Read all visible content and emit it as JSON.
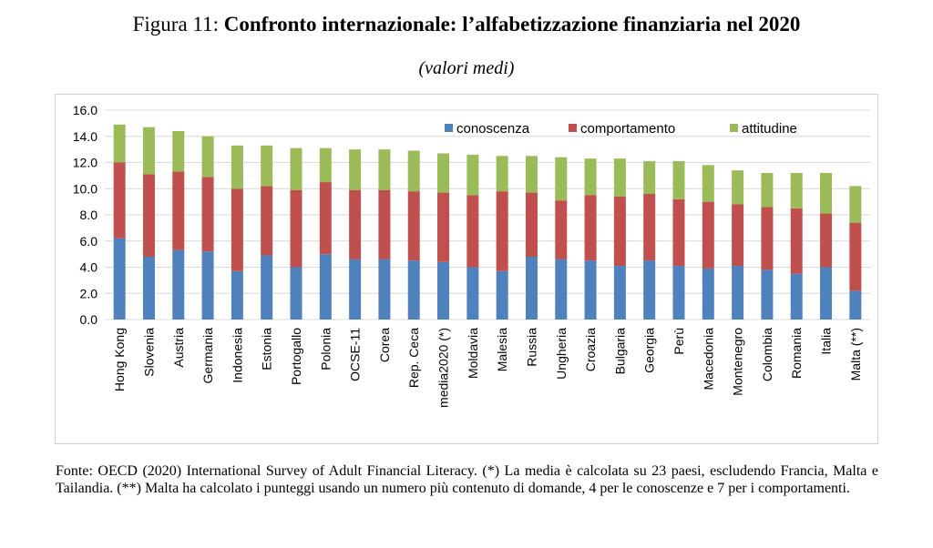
{
  "title": {
    "prefix": "Figura 11: ",
    "main": "Confronto internazionale: l’alfabetizzazione finanziaria nel 2020"
  },
  "subtitle": "(valori medi)",
  "footnote": "Fonte: OECD (2020) International Survey of Adult Financial Literacy. (*) La media è calcolata su 23 paesi, escludendo Francia, Malta e Tailandia. (**) Malta ha calcolato i punteggi usando un numero più contenuto di domande, 4 per le conoscenze e 7 per i comportamenti.",
  "chart_data": {
    "type": "bar",
    "stacked": true,
    "categories": [
      "Hong Kong",
      "Slovenia",
      "Austria",
      "Germania",
      "Indonesia",
      "Estonia",
      "Portogallo",
      "Polonia",
      "OCSE-11",
      "Corea",
      "Rep. Ceca",
      "media2020 (*)",
      "Moldavia",
      "Malesia",
      "Russia",
      "Ungheria",
      "Croazia",
      "Bulgaria",
      "Georgia",
      "Perù",
      "Macedonia",
      "Montenegro",
      "Colombia",
      "Romania",
      "Italia",
      "Malta (**)"
    ],
    "series": [
      {
        "name": "conoscenza",
        "color": "#4f81bd",
        "values": [
          6.2,
          4.8,
          5.3,
          5.2,
          3.7,
          4.9,
          4.0,
          5.0,
          4.6,
          4.6,
          4.5,
          4.4,
          4.0,
          3.7,
          4.8,
          4.6,
          4.5,
          4.1,
          4.5,
          4.1,
          3.9,
          4.1,
          3.8,
          3.5,
          4.0,
          2.2
        ]
      },
      {
        "name": "comportamento",
        "color": "#c0504d",
        "values": [
          5.8,
          6.3,
          6.0,
          5.7,
          6.3,
          5.3,
          5.9,
          5.5,
          5.3,
          5.3,
          5.3,
          5.3,
          5.5,
          6.1,
          4.9,
          4.5,
          5.0,
          5.3,
          5.1,
          5.1,
          5.1,
          4.7,
          4.8,
          5.0,
          4.1,
          5.2
        ]
      },
      {
        "name": "attitudine",
        "color": "#9bbb59",
        "values": [
          2.9,
          3.6,
          3.1,
          3.1,
          3.3,
          3.1,
          3.2,
          2.6,
          3.1,
          3.1,
          3.1,
          3.0,
          3.1,
          2.7,
          2.8,
          3.3,
          2.8,
          2.9,
          2.5,
          2.9,
          2.8,
          2.6,
          2.6,
          2.7,
          3.1,
          2.8
        ]
      }
    ],
    "ylim": [
      0,
      16
    ],
    "yticks": [
      "0.0",
      "2.0",
      "4.0",
      "6.0",
      "8.0",
      "10.0",
      "12.0",
      "14.0",
      "16.0"
    ],
    "grid": true,
    "legend": "top-right"
  }
}
